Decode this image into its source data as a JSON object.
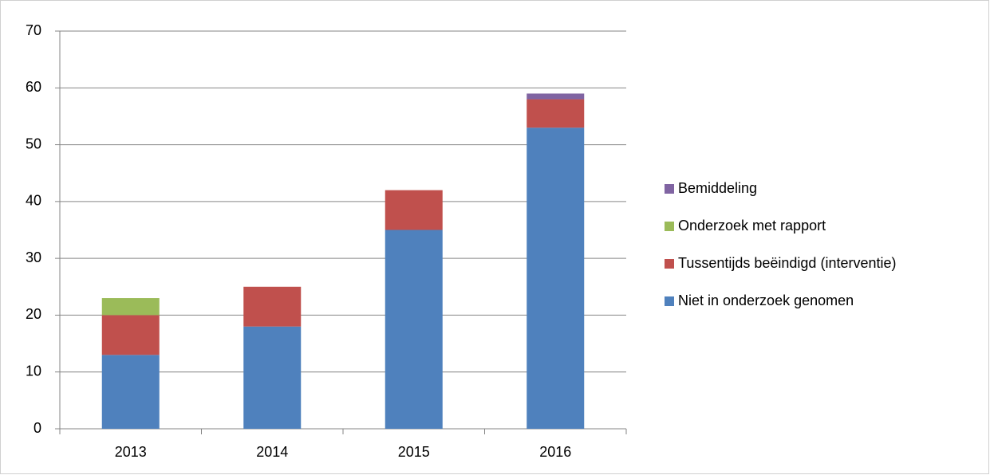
{
  "chart_data": {
    "type": "stacked_bar",
    "categories": [
      "2013",
      "2014",
      "2015",
      "2016"
    ],
    "series": [
      {
        "name": "Niet in onderzoek genomen",
        "color": "#4f81bd",
        "values": [
          13,
          18,
          35,
          53
        ]
      },
      {
        "name": "Tussentijds beëindigd (interventie)",
        "color": "#c0504d",
        "values": [
          7,
          7,
          7,
          5
        ]
      },
      {
        "name": "Onderzoek met rapport",
        "color": "#9bbb59",
        "values": [
          3,
          0,
          0,
          0
        ]
      },
      {
        "name": "Bemiddeling",
        "color": "#8064a2",
        "values": [
          0,
          0,
          0,
          1
        ]
      }
    ],
    "ylim": [
      0,
      70
    ],
    "yticks": [
      0,
      10,
      20,
      30,
      40,
      50,
      60,
      70
    ],
    "grid": true,
    "legend": "right"
  }
}
